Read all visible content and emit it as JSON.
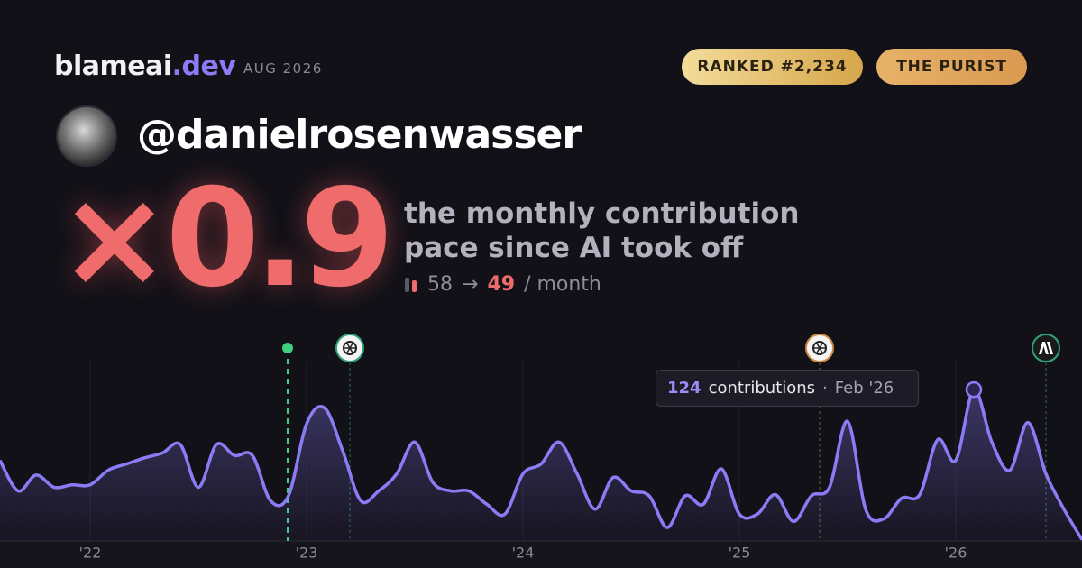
{
  "header": {
    "brand": "blameai",
    "brand_tld": ".dev",
    "date": "AUG 2026",
    "badges": [
      "RANKED #2,234",
      "THE PURIST"
    ]
  },
  "profile": {
    "handle": "@danielrosenwasser"
  },
  "stat": {
    "multiplier": "×0.9",
    "description": [
      "the monthly contribution",
      "pace since AI took off"
    ],
    "before": 58,
    "arrow": "→",
    "after": 49,
    "unit": "/ month"
  },
  "chart_data": {
    "type": "line",
    "color": "#8b7cf6",
    "categories": [
      null,
      null,
      null,
      null,
      null,
      "'22",
      null,
      null,
      null,
      null,
      null,
      null,
      null,
      null,
      null,
      null,
      null,
      "'23",
      null,
      null,
      null,
      null,
      null,
      null,
      null,
      null,
      null,
      null,
      null,
      "'24",
      null,
      null,
      null,
      null,
      null,
      null,
      null,
      null,
      null,
      null,
      null,
      "'25",
      null,
      null,
      null,
      null,
      null,
      null,
      null,
      null,
      null,
      null,
      null,
      "'26",
      null,
      null,
      null,
      null,
      null,
      null,
      null
    ],
    "values": [
      66,
      41,
      54,
      44,
      46,
      46,
      58,
      63,
      68,
      72,
      79,
      44,
      79,
      70,
      70,
      33,
      37,
      96,
      109,
      74,
      33,
      41,
      55,
      81,
      48,
      41,
      41,
      30,
      22,
      55,
      63,
      81,
      55,
      26,
      52,
      41,
      37,
      11,
      37,
      30,
      59,
      22,
      22,
      38,
      16,
      37,
      44,
      98,
      26,
      18,
      35,
      38,
      83,
      66,
      124,
      81,
      58,
      97,
      55,
      26,
      1
    ],
    "ylim": [
      0,
      130
    ]
  },
  "tooltip": {
    "value": 124,
    "label": "contributions",
    "separator": "·",
    "date": "Feb '26"
  }
}
